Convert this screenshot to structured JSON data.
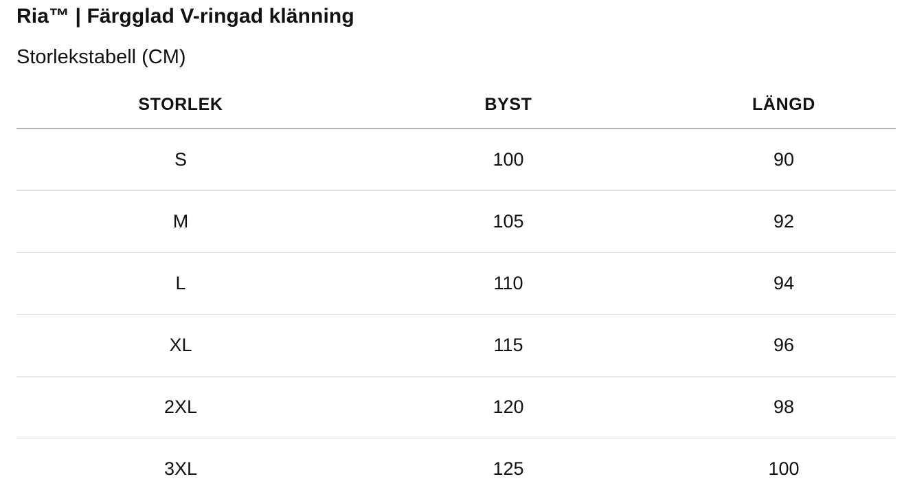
{
  "product": {
    "title": "Ria™ | Färgglad V-ringad klänning",
    "subtitle": "Storlekstabell (CM)"
  },
  "table": {
    "headers": [
      "STORLEK",
      "BYST",
      "LÄNGD"
    ],
    "rows": [
      [
        "S",
        "100",
        "90"
      ],
      [
        "M",
        "105",
        "92"
      ],
      [
        "L",
        "110",
        "94"
      ],
      [
        "XL",
        "115",
        "96"
      ],
      [
        "2XL",
        "120",
        "98"
      ],
      [
        "3XL",
        "125",
        "100"
      ]
    ]
  }
}
